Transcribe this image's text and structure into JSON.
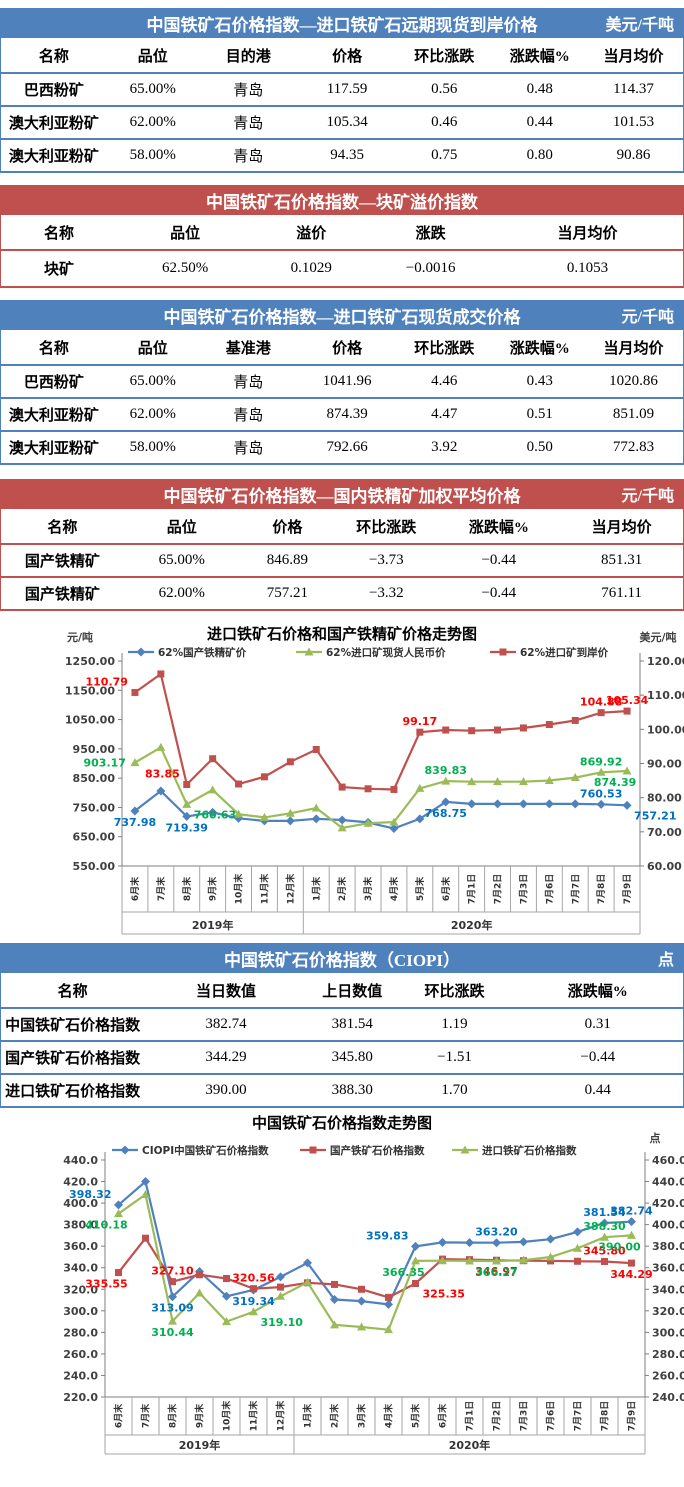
{
  "colors": {
    "header_blue": "#4F81BD",
    "header_red": "#C0504D",
    "series_blue": "#4F81BD",
    "series_green": "#9BBB59",
    "series_red": "#C0504D",
    "label_blue": "#0070C0",
    "label_green": "#00B050",
    "label_red": "#FF0000"
  },
  "tables": [
    {
      "theme": "blue",
      "title": "中国铁矿石价格指数—进口铁矿石远期现货到岸价格",
      "unit": "美元/千吨",
      "columns": [
        "名称",
        "品位",
        "目的港",
        "价格",
        "环比涨跌",
        "涨跌幅%",
        "当月均价"
      ],
      "rows": [
        [
          "巴西粉矿",
          "65.00%",
          "青岛",
          "117.59",
          "0.56",
          "0.48",
          "114.37"
        ],
        [
          "澳大利亚粉矿",
          "62.00%",
          "青岛",
          "105.34",
          "0.46",
          "0.44",
          "101.53"
        ],
        [
          "澳大利亚粉矿",
          "58.00%",
          "青岛",
          "94.35",
          "0.75",
          "0.80",
          "90.86"
        ]
      ]
    },
    {
      "theme": "red",
      "title": "中国铁矿石价格指数—块矿溢价指数",
      "unit": "",
      "columns": [
        "名称",
        "品位",
        "溢价",
        "涨跌",
        "当月均价"
      ],
      "rows": [
        [
          "块矿",
          "62.50%",
          "0.1029",
          "−0.0016",
          "0.1053"
        ]
      ]
    },
    {
      "theme": "blue",
      "title": "中国铁矿石价格指数—进口铁矿石现货成交价格",
      "unit": "元/千吨",
      "columns": [
        "名称",
        "品位",
        "基准港",
        "价格",
        "环比涨跌",
        "涨跌幅%",
        "当月均价"
      ],
      "rows": [
        [
          "巴西粉矿",
          "65.00%",
          "青岛",
          "1041.96",
          "4.46",
          "0.43",
          "1020.86"
        ],
        [
          "澳大利亚粉矿",
          "62.00%",
          "青岛",
          "874.39",
          "4.47",
          "0.51",
          "851.09"
        ],
        [
          "澳大利亚粉矿",
          "58.00%",
          "青岛",
          "792.66",
          "3.92",
          "0.50",
          "772.83"
        ]
      ]
    },
    {
      "theme": "red",
      "title": "中国铁矿石价格指数—国内铁精矿加权平均价格",
      "unit": "元/千吨",
      "columns": [
        "名称",
        "品位",
        "价格",
        "环比涨跌",
        "涨跌幅%",
        "当月均价"
      ],
      "rows": [
        [
          "国产铁精矿",
          "65.00%",
          "846.89",
          "−3.73",
          "−0.44",
          "851.31"
        ],
        [
          "国产铁精矿",
          "62.00%",
          "757.21",
          "−3.32",
          "−0.44",
          "761.11"
        ]
      ]
    },
    {
      "theme": "blue",
      "title": "中国铁矿石价格指数（CIOPI）",
      "unit": "点",
      "columns": [
        "名称",
        "当日数值",
        "上日数值",
        "环比涨跌",
        "涨跌幅%"
      ],
      "rows": [
        [
          "中国铁矿石价格指数",
          "382.74",
          "381.54",
          "1.19",
          "0.31"
        ],
        [
          "国产铁矿石价格指数",
          "344.29",
          "345.80",
          "−1.51",
          "−0.44"
        ],
        [
          "进口铁矿石价格指数",
          "390.00",
          "388.30",
          "1.70",
          "0.44"
        ]
      ]
    }
  ],
  "chart_data": [
    {
      "type": "line",
      "title": "进口铁矿石价格和国产铁精矿价格走势图",
      "left_axis": {
        "label": "元/吨",
        "min": 550,
        "max": 1250,
        "step": 100,
        "decimals": 2
      },
      "right_axis": {
        "label": "美元/吨",
        "min": 60,
        "max": 120,
        "step": 10,
        "decimals": 2
      },
      "categories": [
        "6月末",
        "7月末",
        "8月末",
        "9月末",
        "10月末",
        "11月末",
        "12月末",
        "1月末",
        "2月末",
        "3月末",
        "4月末",
        "5月末",
        "6月末",
        "7月1日",
        "7月2日",
        "7月3日",
        "7月6日",
        "7月7日",
        "7月8日",
        "7月9日"
      ],
      "year_groups": [
        {
          "label": "2019年",
          "span": 7
        },
        {
          "label": "2020年",
          "span": 13
        }
      ],
      "grid": false,
      "legend_position": "top",
      "series": [
        {
          "name": "62%国产铁精矿价",
          "color": "#4F81BD",
          "label_color": "#0070C0",
          "marker": "diamond",
          "axis": "left",
          "values": [
            737.98,
            806,
            719.39,
            733,
            713,
            704,
            704,
            711,
            707,
            699,
            678,
            711,
            768.75,
            762,
            762,
            762,
            762,
            762,
            760.53,
            757.21
          ]
        },
        {
          "name": "62%进口矿现货人民币价",
          "color": "#9BBB59",
          "label_color": "#00B050",
          "marker": "triangle",
          "axis": "left",
          "values": [
            903.17,
            955,
            760.63,
            810,
            727,
            716,
            730,
            748,
            680,
            696,
            700,
            815,
            839.83,
            838,
            838,
            838,
            842,
            852,
            869.92,
            874.39
          ]
        },
        {
          "name": "62%进口矿到岸价",
          "color": "#C0504D",
          "label_color": "#FF0000",
          "marker": "square",
          "axis": "right",
          "values": [
            110.79,
            116.2,
            83.85,
            91.4,
            84.0,
            86.1,
            90.5,
            94.1,
            83.1,
            82.6,
            82.4,
            99.17,
            99.8,
            99.6,
            99.8,
            100.4,
            101.4,
            102.6,
            104.88,
            105.34
          ]
        }
      ],
      "annotations": [
        {
          "s": 0,
          "i": 0,
          "t": "737.98",
          "p": "below"
        },
        {
          "s": 0,
          "i": 2,
          "t": "719.39",
          "p": "below"
        },
        {
          "s": 0,
          "i": 12,
          "t": "768.75",
          "p": "below"
        },
        {
          "s": 0,
          "i": 18,
          "t": "760.53",
          "p": "above"
        },
        {
          "s": 0,
          "i": 19,
          "t": "757.21",
          "p": "below-right"
        },
        {
          "s": 1,
          "i": 0,
          "t": "903.17",
          "p": "left"
        },
        {
          "s": 1,
          "i": 2,
          "t": "760.63",
          "p": "below-right"
        },
        {
          "s": 1,
          "i": 12,
          "t": "839.83",
          "p": "above"
        },
        {
          "s": 1,
          "i": 18,
          "t": "869.92",
          "p": "above"
        },
        {
          "s": 1,
          "i": 19,
          "t": "874.39",
          "p": "below-left"
        },
        {
          "s": 2,
          "i": 0,
          "t": "110.79",
          "p": "above-left"
        },
        {
          "s": 2,
          "i": 2,
          "t": "83.85",
          "p": "above-left"
        },
        {
          "s": 2,
          "i": 11,
          "t": "99.17",
          "p": "above"
        },
        {
          "s": 2,
          "i": 18,
          "t": "104.88",
          "p": "above"
        },
        {
          "s": 2,
          "i": 19,
          "t": "105.34",
          "p": "above"
        }
      ]
    },
    {
      "type": "line",
      "title": "中国铁矿石价格指数走势图",
      "left_axis": {
        "label": "",
        "min": 220,
        "max": 440,
        "step": 20,
        "decimals": 1
      },
      "right_axis": {
        "label": "点",
        "min": 240,
        "max": 460,
        "step": 20,
        "decimals": 1
      },
      "categories": [
        "6月末",
        "7月末",
        "8月末",
        "9月末",
        "10月末",
        "11月末",
        "12月末",
        "1月末",
        "2月末",
        "3月末",
        "4月末",
        "5月末",
        "6月末",
        "7月1日",
        "7月2日",
        "7月3日",
        "7月6日",
        "7月7日",
        "7月8日",
        "7月9日"
      ],
      "year_groups": [
        {
          "label": "2019年",
          "span": 7
        },
        {
          "label": "2020年",
          "span": 13
        }
      ],
      "grid": false,
      "legend_position": "top",
      "series": [
        {
          "name": "CIOPI中国铁矿石价格指数",
          "color": "#4F81BD",
          "label_color": "#0070C0",
          "marker": "diamond",
          "axis": "left",
          "values": [
            398.32,
            420.0,
            313.09,
            336.5,
            313.5,
            319.34,
            331.5,
            344.5,
            310.5,
            309.0,
            306.0,
            359.83,
            363.5,
            363.3,
            363.2,
            364.0,
            366.5,
            373.3,
            381.54,
            382.74
          ]
        },
        {
          "name": "国产铁矿石价格指数",
          "color": "#C0504D",
          "label_color": "#FF0000",
          "marker": "square",
          "axis": "left",
          "values": [
            335.55,
            367.4,
            327.1,
            333.5,
            330.0,
            320.56,
            322.0,
            326.0,
            324.5,
            320.0,
            312.5,
            325.35,
            348.0,
            347.5,
            346.97,
            346.5,
            346.3,
            346.0,
            345.8,
            344.29
          ]
        },
        {
          "name": "进口铁矿石价格指数",
          "color": "#9BBB59",
          "label_color": "#00B050",
          "marker": "triangle",
          "axis": "right",
          "values": [
            410.18,
            428.0,
            310.44,
            336.5,
            310.0,
            319.1,
            333.5,
            346.5,
            307.0,
            305.0,
            302.5,
            366.35,
            366.5,
            366.3,
            366.27,
            367.0,
            370.0,
            378.0,
            388.3,
            390.0
          ]
        }
      ],
      "annotations": [
        {
          "s": 0,
          "i": 0,
          "t": "398.32",
          "p": "above-left"
        },
        {
          "s": 0,
          "i": 2,
          "t": "313.09",
          "p": "below"
        },
        {
          "s": 0,
          "i": 5,
          "t": "319.34",
          "p": "below"
        },
        {
          "s": 0,
          "i": 11,
          "t": "359.83",
          "p": "above-left"
        },
        {
          "s": 0,
          "i": 14,
          "t": "363.20",
          "p": "above"
        },
        {
          "s": 0,
          "i": 18,
          "t": "381.54",
          "p": "above"
        },
        {
          "s": 0,
          "i": 19,
          "t": "382.74",
          "p": "above"
        },
        {
          "s": 1,
          "i": 0,
          "t": "335.55",
          "p": "below-left"
        },
        {
          "s": 1,
          "i": 2,
          "t": "327.10",
          "p": "above"
        },
        {
          "s": 1,
          "i": 5,
          "t": "320.56",
          "p": "above"
        },
        {
          "s": 1,
          "i": 11,
          "t": "325.35",
          "p": "below-right"
        },
        {
          "s": 1,
          "i": 14,
          "t": "346.97",
          "p": "below"
        },
        {
          "s": 1,
          "i": 18,
          "t": "345.80",
          "p": "above"
        },
        {
          "s": 1,
          "i": 19,
          "t": "344.29",
          "p": "below"
        },
        {
          "s": 2,
          "i": 0,
          "t": "410.18",
          "p": "below-left"
        },
        {
          "s": 2,
          "i": 2,
          "t": "310.44",
          "p": "below"
        },
        {
          "s": 2,
          "i": 5,
          "t": "319.10",
          "p": "below-right"
        },
        {
          "s": 2,
          "i": 11,
          "t": "366.35",
          "p": "below-left"
        },
        {
          "s": 2,
          "i": 14,
          "t": "366.27",
          "p": "below"
        },
        {
          "s": 2,
          "i": 18,
          "t": "388.30",
          "p": "above"
        },
        {
          "s": 2,
          "i": 19,
          "t": "390.00",
          "p": "below-left"
        }
      ]
    }
  ]
}
